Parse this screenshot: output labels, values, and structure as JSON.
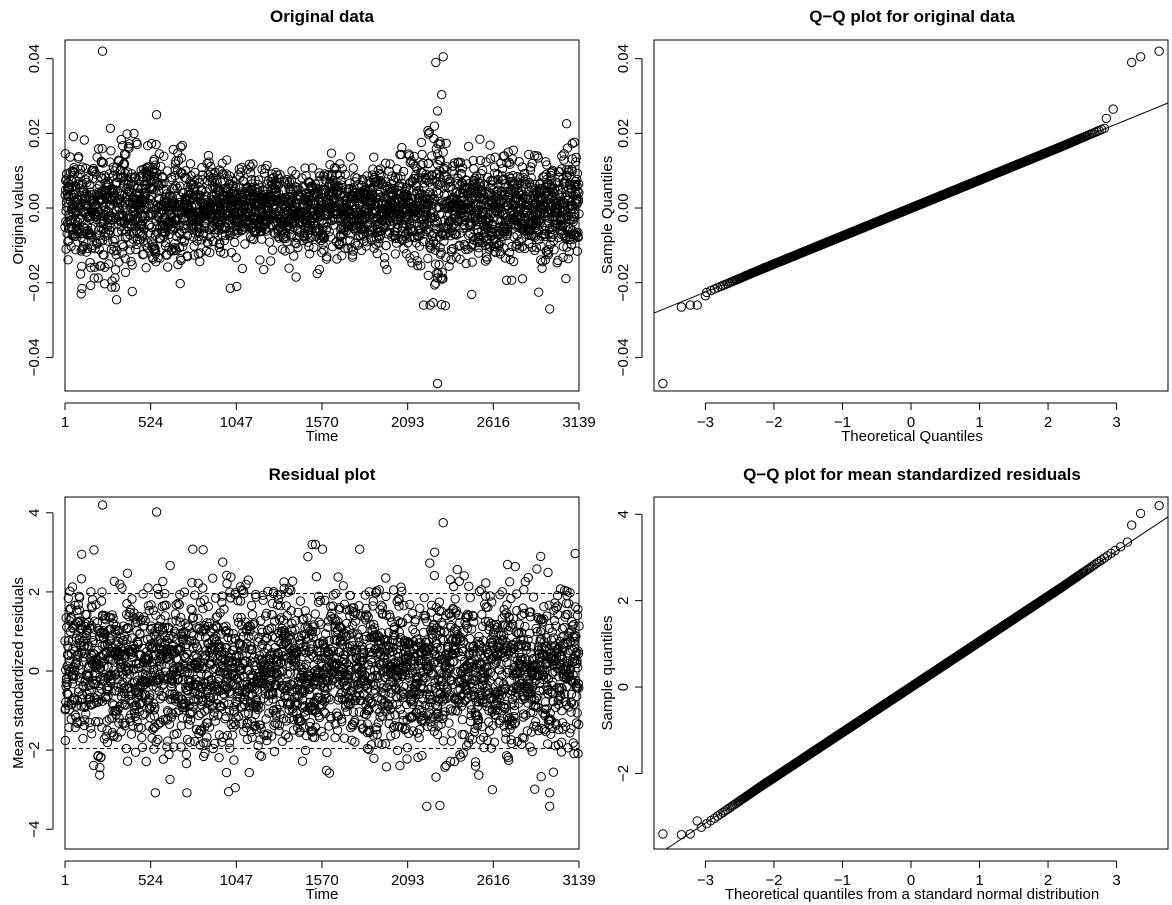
{
  "chart_data": [
    {
      "type": "scatter",
      "title": "Original data",
      "xlabel": "Time",
      "ylabel": "Original values",
      "xlim": [
        1,
        3139
      ],
      "ylim": [
        -0.049,
        0.045
      ],
      "xticks": [
        1,
        524,
        1047,
        1570,
        2093,
        2616,
        3139
      ],
      "yticks": [
        -0.04,
        -0.02,
        0.0,
        0.02,
        0.04
      ],
      "ytick_labels": [
        "−0.04",
        "−0.02",
        "0.00",
        "0.02",
        "0.04"
      ],
      "n_points": 3139,
      "point_style": "open-circle",
      "series": [
        {
          "kind": "time-series",
          "base_sd": 0.0065,
          "regimes": [
            {
              "from": 1,
              "to": 720,
              "sd": 0.0078
            },
            {
              "from": 720,
              "to": 2050,
              "sd": 0.0055
            },
            {
              "from": 2050,
              "to": 2210,
              "sd": 0.0068
            },
            {
              "from": 2210,
              "to": 2330,
              "sd": 0.0125
            },
            {
              "from": 2330,
              "to": 3139,
              "sd": 0.0072
            }
          ],
          "notable_points": [
            {
              "x": 230,
              "y": 0.042
            },
            {
              "x": 560,
              "y": 0.025
            },
            {
              "x": 2265,
              "y": 0.039
            },
            {
              "x": 2310,
              "y": 0.0405
            },
            {
              "x": 2275,
              "y": 0.026
            },
            {
              "x": 2275,
              "y": -0.047
            },
            {
              "x": 2230,
              "y": -0.026
            },
            {
              "x": 2190,
              "y": -0.026
            },
            {
              "x": 2960,
              "y": -0.027
            },
            {
              "x": 1010,
              "y": -0.0215
            },
            {
              "x": 1050,
              "y": -0.021
            },
            {
              "x": 100,
              "y": -0.023
            }
          ]
        }
      ],
      "grid": false,
      "legend": "none"
    },
    {
      "type": "scatter",
      "title": "Q−Q plot for original data",
      "xlabel": "Theoretical Quantiles",
      "ylabel": "Sample Quantiles",
      "xlim": [
        -3.75,
        3.75
      ],
      "ylim": [
        -0.049,
        0.045
      ],
      "xticks": [
        -3,
        -2,
        -1,
        0,
        1,
        2,
        3
      ],
      "xtick_labels": [
        "−3",
        "−2",
        "−1",
        "0",
        "1",
        "2",
        "3"
      ],
      "yticks": [
        -0.04,
        -0.02,
        0.0,
        0.02,
        0.04
      ],
      "ytick_labels": [
        "−0.04",
        "−0.02",
        "0.00",
        "0.02",
        "0.04"
      ],
      "n_points": 3139,
      "point_style": "open-circle",
      "reference_line": {
        "intercept": 0.0,
        "slope": 0.0075
      },
      "series": [
        {
          "kind": "normal-qq",
          "tail_points": [
            {
              "x": -3.62,
              "y": -0.047
            },
            {
              "x": -3.35,
              "y": -0.0265
            },
            {
              "x": -3.22,
              "y": -0.026
            },
            {
              "x": -3.12,
              "y": -0.026
            },
            {
              "x": -3.0,
              "y": -0.0235
            },
            {
              "x": 2.85,
              "y": 0.024
            },
            {
              "x": 2.95,
              "y": 0.0265
            },
            {
              "x": 3.22,
              "y": 0.039
            },
            {
              "x": 3.35,
              "y": 0.0405
            },
            {
              "x": 3.62,
              "y": 0.042
            }
          ]
        }
      ],
      "grid": false,
      "legend": "none"
    },
    {
      "type": "scatter",
      "title": "Residual plot",
      "xlabel": "Time",
      "ylabel": "Mean standardized residuals",
      "xlim": [
        1,
        3139
      ],
      "ylim": [
        -4.5,
        4.4
      ],
      "xticks": [
        1,
        524,
        1047,
        1570,
        2093,
        2616,
        3139
      ],
      "yticks": [
        -4,
        -2,
        0,
        2,
        4
      ],
      "ytick_labels": [
        "−4",
        "−2",
        "0",
        "2",
        "4"
      ],
      "n_points": 3139,
      "point_style": "open-circle",
      "reference_hlines": [
        1.96,
        -1.96
      ],
      "series": [
        {
          "kind": "time-series",
          "base_sd": 1.0,
          "regimes": [
            {
              "from": 1,
              "to": 3139,
              "sd": 1.0
            }
          ],
          "notable_points": [
            {
              "x": 230,
              "y": 4.2
            },
            {
              "x": 560,
              "y": 4.02
            },
            {
              "x": 2310,
              "y": 3.75
            },
            {
              "x": 1510,
              "y": 3.2
            },
            {
              "x": 1530,
              "y": 3.2
            },
            {
              "x": 2210,
              "y": -3.42
            },
            {
              "x": 2290,
              "y": -3.4
            },
            {
              "x": 2960,
              "y": -3.42
            },
            {
              "x": 2610,
              "y": -3.0
            },
            {
              "x": 1000,
              "y": -3.05
            },
            {
              "x": 1040,
              "y": -2.95
            }
          ]
        }
      ],
      "grid": false,
      "legend": "none"
    },
    {
      "type": "scatter",
      "title": "Q−Q plot for mean standardized residuals",
      "xlabel": "Theoretical quantiles from a standard normal distribution",
      "ylabel": "Sample quantiles",
      "xlim": [
        -3.75,
        3.75
      ],
      "ylim": [
        -3.75,
        4.4
      ],
      "xticks": [
        -3,
        -2,
        -1,
        0,
        1,
        2,
        3
      ],
      "xtick_labels": [
        "−3",
        "−2",
        "−1",
        "0",
        "1",
        "2",
        "3"
      ],
      "yticks": [
        -2,
        0,
        2,
        4
      ],
      "ytick_labels": [
        "−2",
        "0",
        "2",
        "4"
      ],
      "n_points": 3139,
      "point_style": "open-circle",
      "reference_line": {
        "intercept": 0.0,
        "slope": 1.05
      },
      "series": [
        {
          "kind": "normal-qq",
          "tail_points": [
            {
              "x": -3.62,
              "y": -3.4
            },
            {
              "x": -3.35,
              "y": -3.42
            },
            {
              "x": -3.22,
              "y": -3.4
            },
            {
              "x": -3.12,
              "y": -3.1
            },
            {
              "x": 3.22,
              "y": 3.75
            },
            {
              "x": 3.35,
              "y": 4.02
            },
            {
              "x": 3.62,
              "y": 4.2
            }
          ]
        }
      ],
      "grid": false,
      "legend": "none"
    }
  ]
}
